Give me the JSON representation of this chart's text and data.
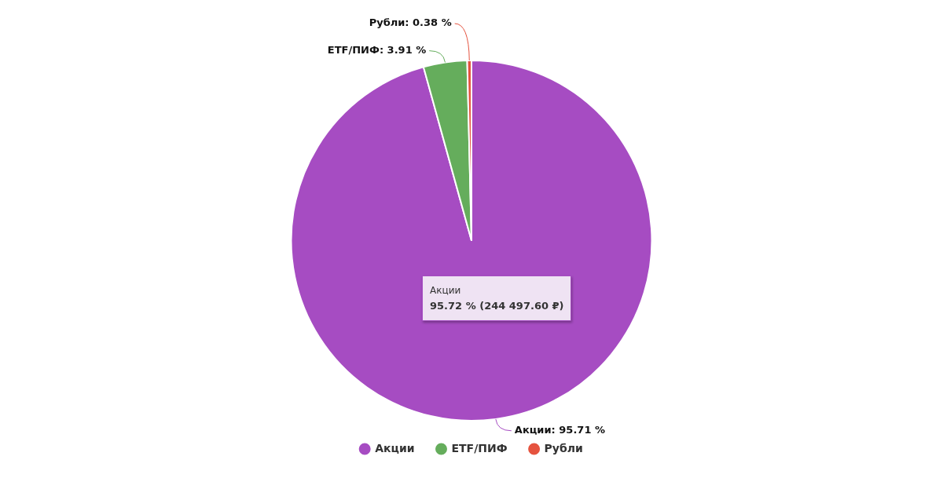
{
  "chart_data": {
    "type": "pie",
    "categories": [
      "Акции",
      "ETF/ПИФ",
      "Рубли"
    ],
    "values": [
      95.71,
      3.91,
      0.38
    ],
    "colors": [
      "#a64cc2",
      "#65ad5c",
      "#e5533f"
    ],
    "value_labels": [
      "Акции: 95.71 %",
      "ETF/ПИФ: 3.91 %",
      "Рубли: 0.38 %"
    ],
    "legend": "bottom",
    "annotations": [
      "Акции",
      "95.72 % (244 497.60 ₽)"
    ]
  }
}
